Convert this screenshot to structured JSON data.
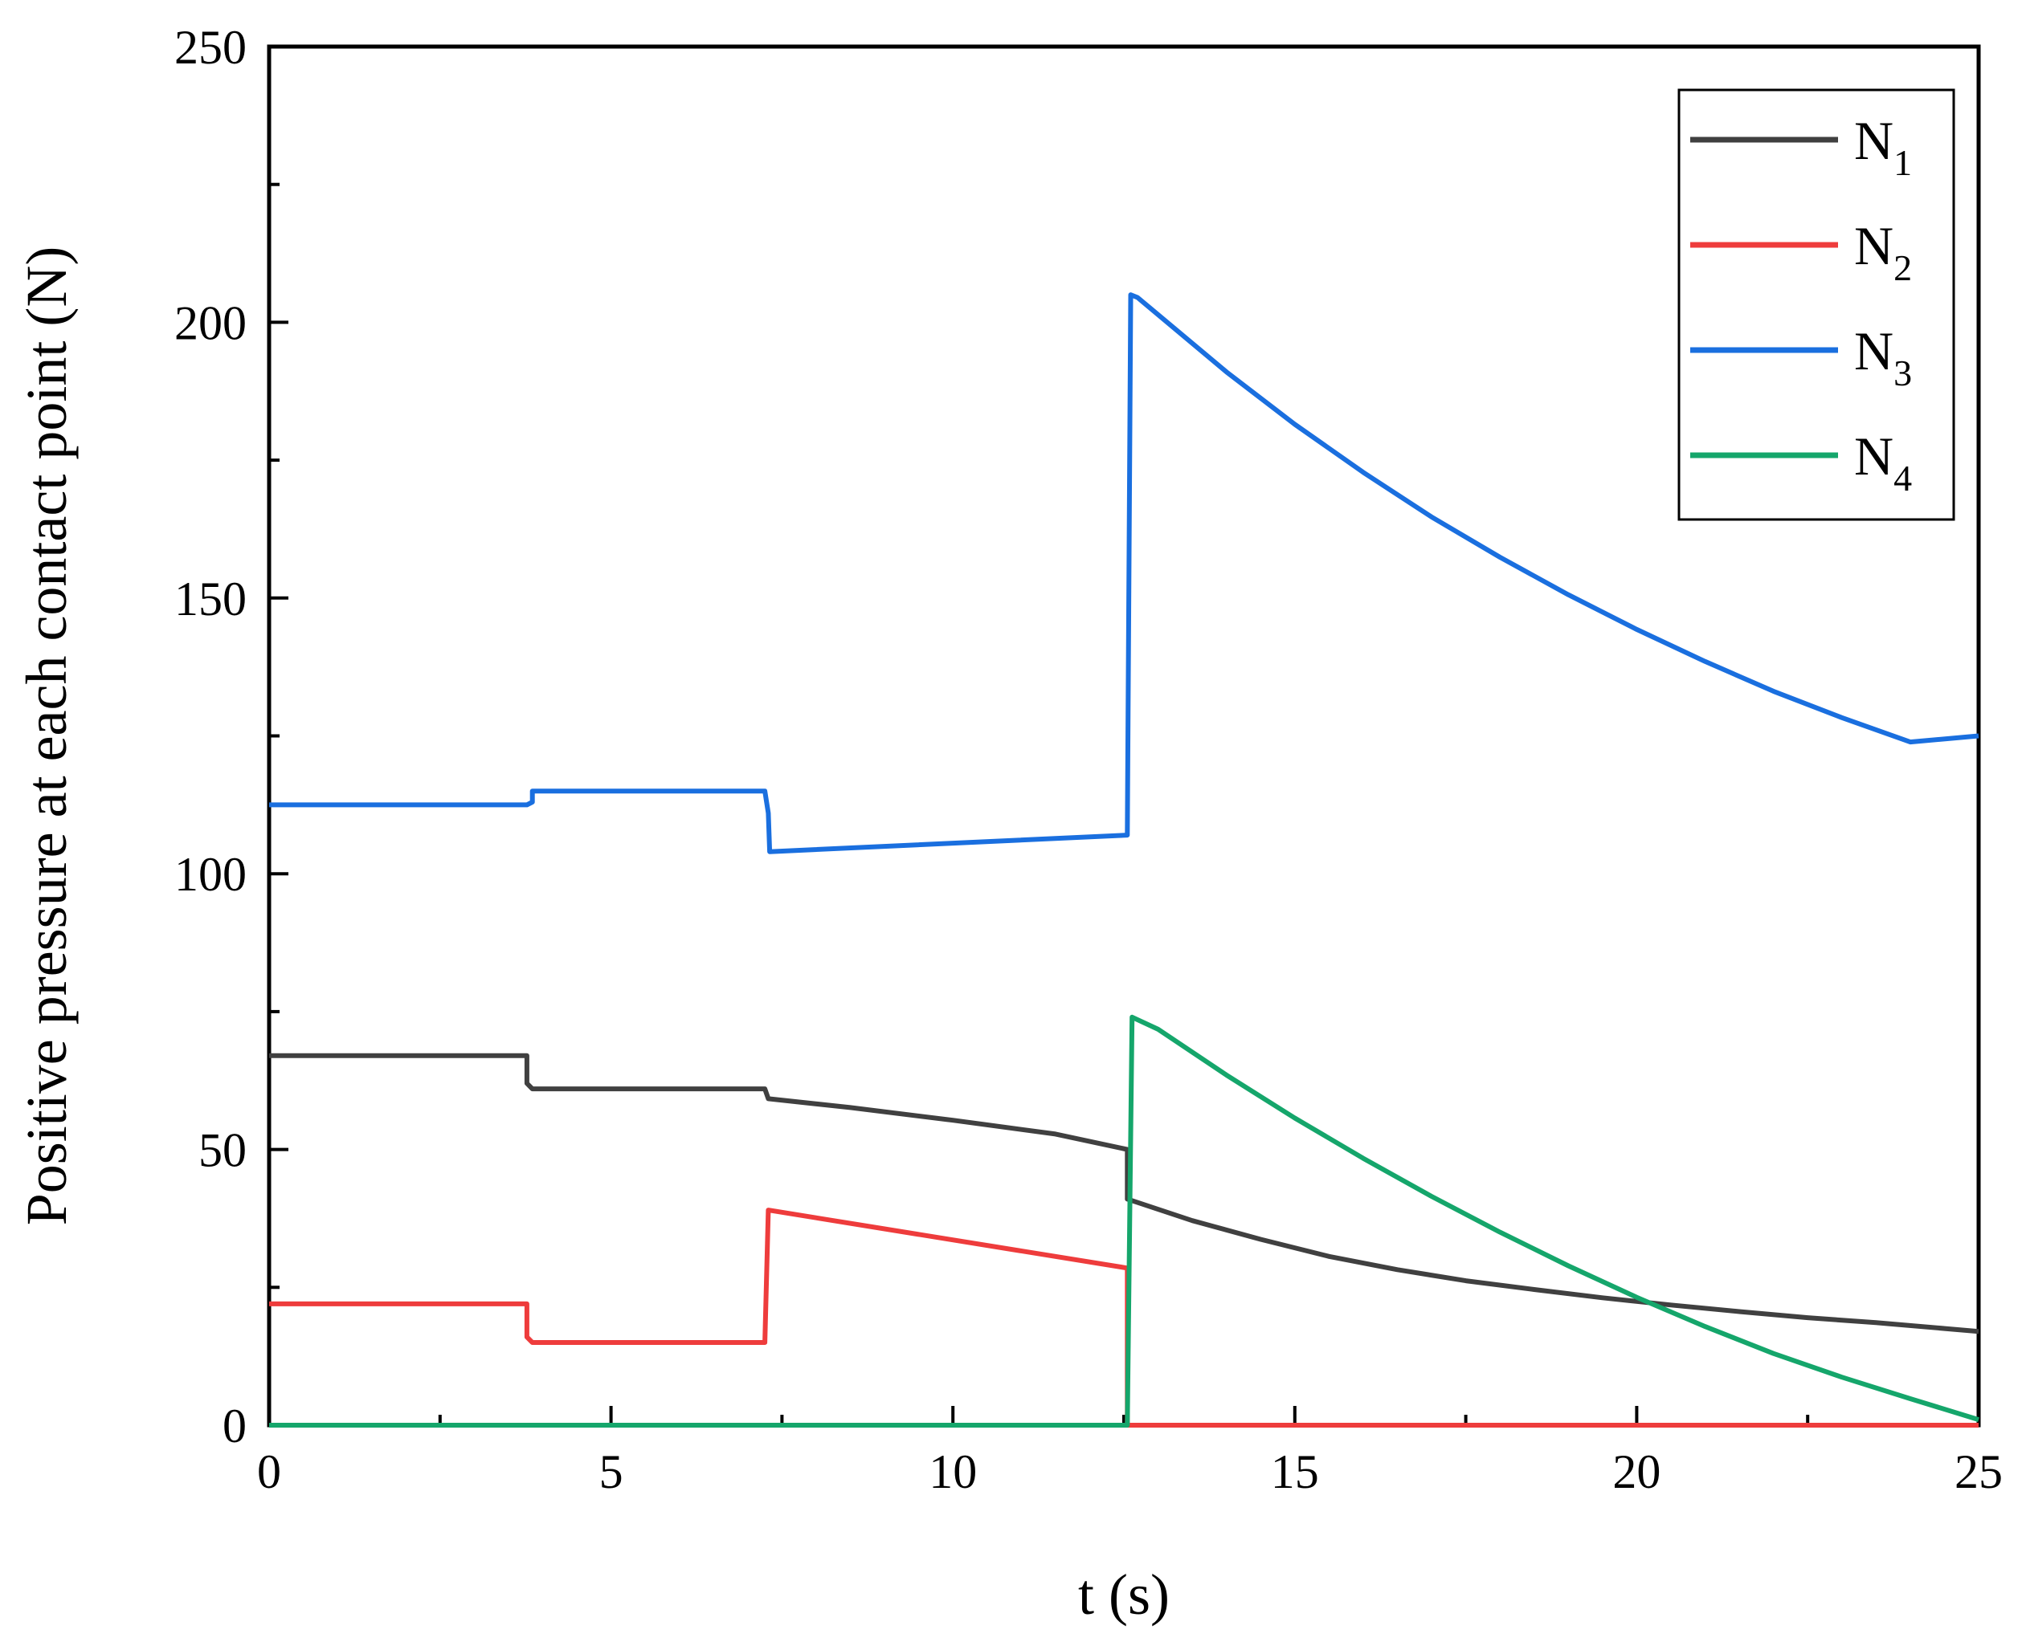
{
  "chart_data": {
    "type": "line",
    "xlabel": "t (s)",
    "ylabel": "Positive pressure at each contact point (N)",
    "xlim": [
      0,
      25
    ],
    "ylim": [
      0,
      250
    ],
    "xticks": [
      0,
      5,
      10,
      15,
      20,
      25
    ],
    "yticks": [
      0,
      50,
      100,
      150,
      200,
      250
    ],
    "grid": false,
    "legend_position": "top-right",
    "series": [
      {
        "name": "N",
        "subscript": "1",
        "color": "#404040",
        "x": [
          0,
          3.77,
          3.77,
          3.85,
          7.25,
          7.3,
          8.5,
          10,
          11.5,
          12.55,
          12.55,
          12.65,
          13.5,
          14.5,
          15.5,
          16.5,
          17.5,
          18.5,
          19.5,
          20.5,
          21.5,
          22.5,
          23.5,
          25
        ],
        "y": [
          67,
          67,
          62,
          61,
          61,
          59.2,
          57.6,
          55.3,
          52.8,
          50,
          41,
          40.6,
          37.1,
          33.7,
          30.6,
          28.2,
          26.2,
          24.6,
          23.1,
          21.8,
          20.6,
          19.5,
          18.6,
          17
        ]
      },
      {
        "name": "N",
        "subscript": "2",
        "color": "#ee3c3c",
        "x": [
          0,
          3.77,
          3.77,
          3.85,
          7.25,
          7.3,
          12.55,
          12.55,
          25
        ],
        "y": [
          22,
          22,
          16,
          15,
          15,
          39,
          28.5,
          0,
          0
        ]
      },
      {
        "name": "N",
        "subscript": "3",
        "color": "#1a6fdf",
        "x": [
          0,
          3.77,
          3.85,
          3.85,
          7.25,
          7.3,
          7.32,
          12.55,
          12.6,
          12.7,
          14,
          15,
          16,
          17,
          18,
          19,
          20,
          21,
          22,
          23,
          24,
          25
        ],
        "y": [
          112.5,
          112.5,
          113,
          115,
          115,
          111,
          104,
          107,
          205,
          204.5,
          191,
          181.5,
          172.8,
          164.7,
          157.4,
          150.6,
          144.3,
          138.5,
          133.1,
          128.3,
          123.9,
          125
        ]
      },
      {
        "name": "N",
        "subscript": "4",
        "color": "#15a66b",
        "x": [
          0,
          12.55,
          12.62,
          13,
          14,
          15,
          16,
          17,
          18,
          19,
          20,
          21,
          22,
          23,
          24,
          25
        ],
        "y": [
          0,
          0,
          74,
          71.8,
          63.5,
          55.7,
          48.4,
          41.5,
          35,
          28.9,
          23.2,
          17.9,
          13,
          8.7,
          4.8,
          1
        ]
      }
    ]
  }
}
